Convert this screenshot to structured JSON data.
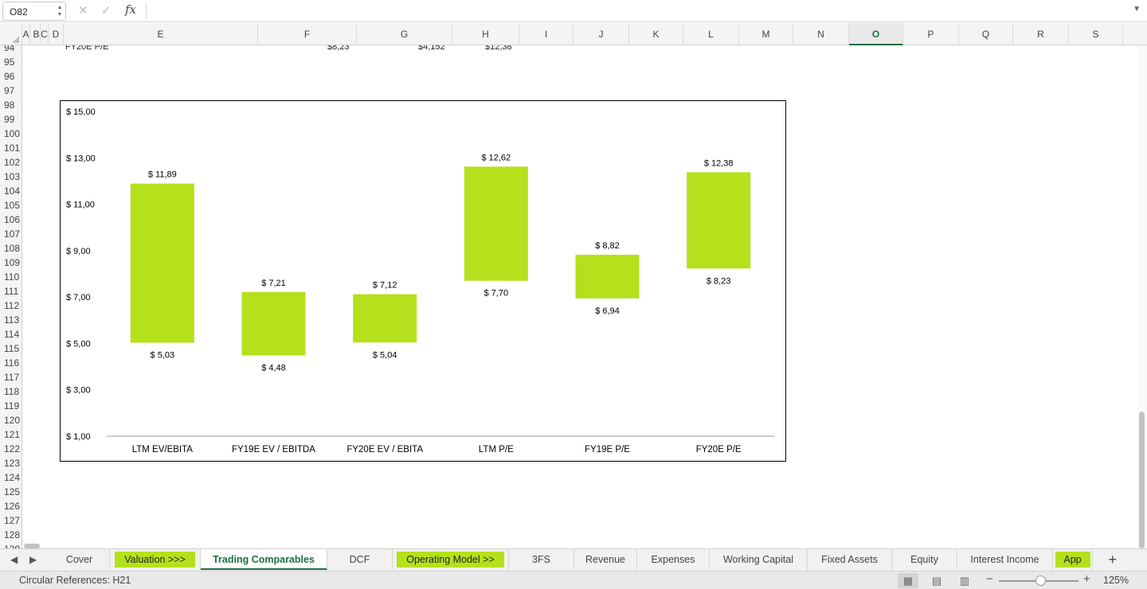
{
  "formula_bar": {
    "name_box": "O82",
    "cancel_icon": "cancel-icon",
    "confirm_icon": "check-icon",
    "fx_label": "fx",
    "formula": ""
  },
  "columns": [
    {
      "label": "A"
    },
    {
      "label": "B"
    },
    {
      "label": "C"
    },
    {
      "label": "D"
    },
    {
      "label": "E"
    },
    {
      "label": "F"
    },
    {
      "label": "G"
    },
    {
      "label": "H"
    },
    {
      "label": "I"
    },
    {
      "label": "J"
    },
    {
      "label": "K"
    },
    {
      "label": "L"
    },
    {
      "label": "M"
    },
    {
      "label": "N"
    },
    {
      "label": "O",
      "active": true
    },
    {
      "label": "P"
    },
    {
      "label": "Q"
    },
    {
      "label": "R"
    },
    {
      "label": "S"
    }
  ],
  "rows": [
    "94",
    "95",
    "96",
    "97",
    "98",
    "99",
    "100",
    "101",
    "102",
    "103",
    "104",
    "105",
    "106",
    "107",
    "108",
    "109",
    "110",
    "111",
    "112",
    "113",
    "114",
    "115",
    "116",
    "117",
    "118",
    "119",
    "120",
    "121",
    "122",
    "123",
    "124",
    "125",
    "126",
    "127",
    "128",
    "129"
  ],
  "row94": {
    "label": "FY20E P/E",
    "f": "$8,23",
    "g": "$4,152",
    "h": "$12,38"
  },
  "chart_data": {
    "type": "floating-bar",
    "title": "",
    "categories": [
      "LTM EV/EBITA",
      "FY19E EV / EBITDA",
      "FY20E EV / EBITA",
      "LTM P/E",
      "FY19E P/E",
      "FY20E P/E"
    ],
    "low": [
      5.03,
      4.48,
      5.04,
      7.7,
      6.94,
      8.23
    ],
    "high": [
      11.89,
      7.21,
      7.12,
      12.62,
      8.82,
      12.38
    ],
    "low_labels": [
      "$ 5,03",
      "$ 4,48",
      "$ 5,04",
      "$ 7,70",
      "$ 6,94",
      "$ 8,23"
    ],
    "high_labels": [
      "$ 11,89",
      "$ 7,21",
      "$ 7,12",
      "$ 12,62",
      "$ 8,82",
      "$ 12,38"
    ],
    "y_ticks": [
      1,
      3,
      5,
      7,
      9,
      11,
      13,
      15
    ],
    "y_tick_labels": [
      "$ 1,00",
      "$ 3,00",
      "$ 5,00",
      "$ 7,00",
      "$ 9,00",
      "$ 11,00",
      "$ 13,00",
      "$ 15,00"
    ],
    "ylim": [
      1,
      15
    ],
    "bar_color": "#b4e11b",
    "grid": false,
    "legend": "none"
  },
  "tabs": [
    {
      "label": "Cover"
    },
    {
      "label": "Valuation >>>",
      "style": "green"
    },
    {
      "label": "Trading Comparables",
      "active": true
    },
    {
      "label": "DCF"
    },
    {
      "label": "Operating Model >>",
      "style": "green"
    },
    {
      "label": "3FS"
    },
    {
      "label": "Revenue"
    },
    {
      "label": "Expenses"
    },
    {
      "label": "Working Capital"
    },
    {
      "label": "Fixed Assets"
    },
    {
      "label": "Equity"
    },
    {
      "label": "Interest Income"
    },
    {
      "label": "App",
      "style": "green"
    }
  ],
  "status": {
    "text": "Circular References: H21",
    "zoom": "125%",
    "view_normal_icon": "normal-view-icon",
    "view_page_layout_icon": "page-layout-icon",
    "view_page_break_icon": "page-break-preview-icon"
  },
  "colors": {
    "accent": "#1d6f42",
    "bar": "#b4e11b"
  }
}
